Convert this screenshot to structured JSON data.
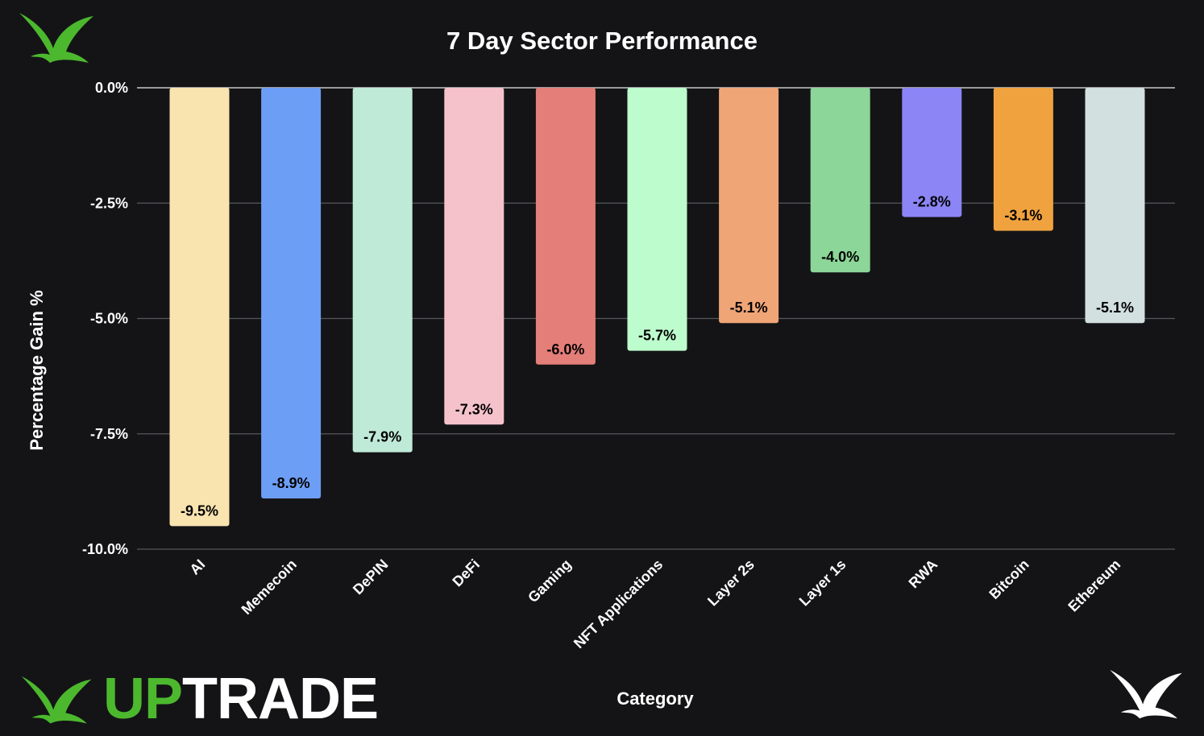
{
  "chart_data": {
    "type": "bar",
    "title": "7 Day Sector Performance",
    "xlabel": "Category",
    "ylabel": "Percentage Gain %",
    "categories": [
      "AI",
      "Memecoin",
      "DePIN",
      "DeFi",
      "Gaming",
      "NFT Applications",
      "Layer 2s",
      "Layer 1s",
      "RWA",
      "Bitcoin",
      "Ethereum"
    ],
    "values": [
      -9.5,
      -8.9,
      -7.9,
      -7.3,
      -6.0,
      -5.7,
      -5.1,
      -4.0,
      -2.8,
      -3.1,
      -5.1
    ],
    "data_labels": [
      "-9.5%",
      "-8.9%",
      "-7.9%",
      "-7.3%",
      "-6.0%",
      "-5.7%",
      "-5.1%",
      "-4.0%",
      "-2.8%",
      "-3.1%",
      "-5.1%"
    ],
    "colors": [
      "#f9e4b0",
      "#6d9ef5",
      "#c0ead8",
      "#f5c2cc",
      "#e47e78",
      "#bdfccd",
      "#f0a577",
      "#8bd698",
      "#8b85f5",
      "#f0a23f",
      "#d2e0df"
    ],
    "ylim": [
      -10,
      0
    ],
    "yticks": [
      0,
      -2.5,
      -5,
      -7.5,
      -10
    ],
    "ytick_labels": [
      "0.0%",
      "-2.5%",
      "-5.0%",
      "-7.5%",
      "-10.0%"
    ],
    "grid": true,
    "legend": "none"
  },
  "brand": {
    "wordmark_up": "UP",
    "wordmark_trade": "TRADE",
    "accent": "#4cb82e",
    "logo_icon": "bird-icon"
  },
  "theme": {
    "background": "#141416",
    "gridline": "#55575a",
    "zero_line": "#c8c8c8"
  }
}
